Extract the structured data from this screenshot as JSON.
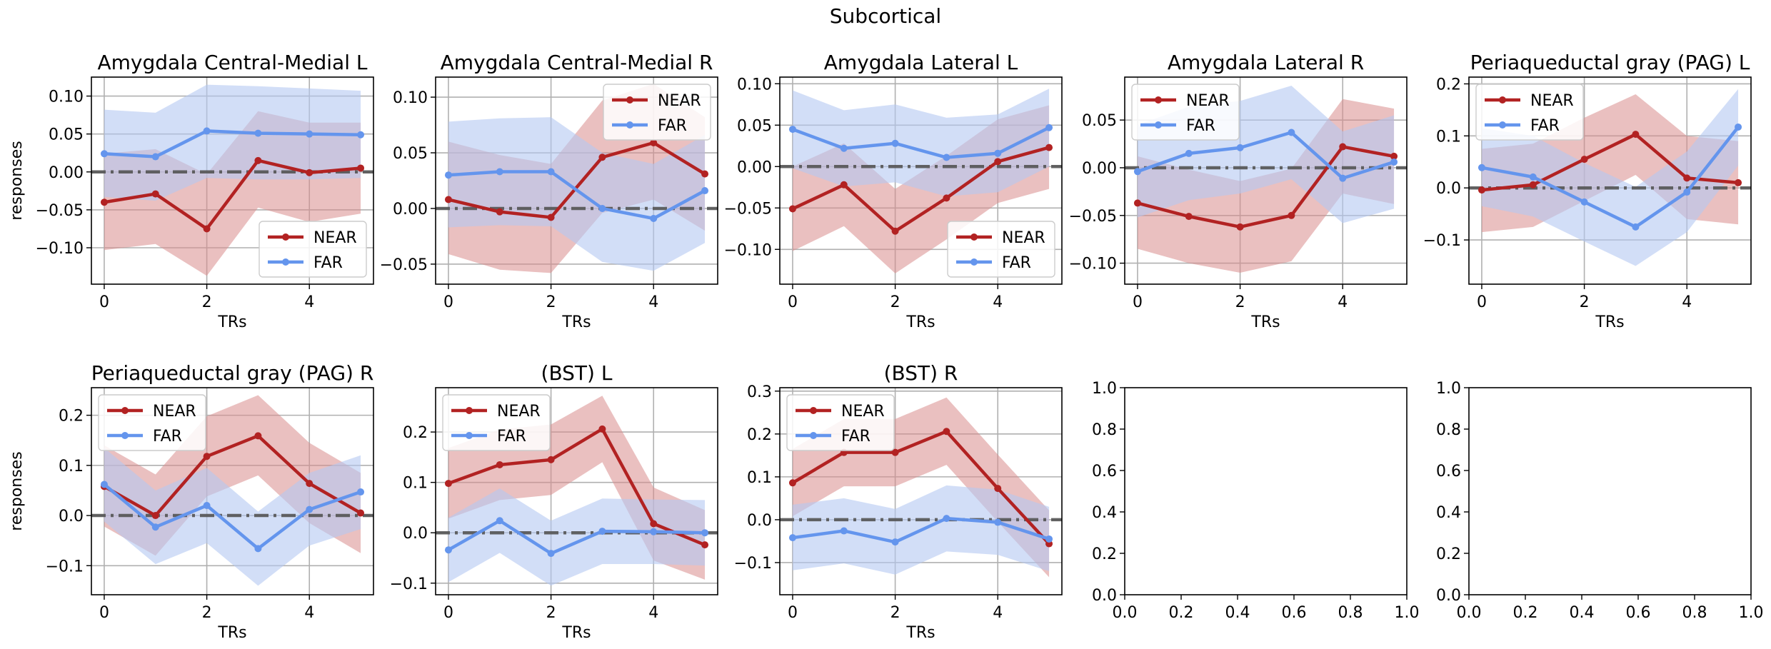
{
  "figure": {
    "suptitle": "Subcortical"
  },
  "style": {
    "near_color": "#b22222",
    "far_color": "#6495ed",
    "near_fill": "#d98c8c",
    "far_fill": "#b4c8f2",
    "zero_line_color": "#555555",
    "grid_color": "#b0b0b0"
  },
  "chart_data": [
    {
      "type": "line",
      "title": "Amygdala Central-Medial L",
      "xlabel": "TRs",
      "ylabel": "responses",
      "x": [
        0,
        1,
        2,
        3,
        4,
        5
      ],
      "xlim": [
        -0.25,
        5.25
      ],
      "ylim": [
        -0.148,
        0.125
      ],
      "yticks": [
        -0.1,
        -0.05,
        0.0,
        0.05,
        0.1
      ],
      "ytick_labels": [
        "−0.10",
        "−0.05",
        "0.00",
        "0.05",
        "0.10"
      ],
      "xticks": [
        0,
        2,
        4
      ],
      "xtick_labels": [
        "0",
        "2",
        "4"
      ],
      "legend": "lower-right",
      "grid": true,
      "zero_line": true,
      "series": [
        {
          "name": "NEAR",
          "values": [
            -0.04,
            -0.029,
            -0.075,
            0.015,
            -0.001,
            0.005
          ],
          "upper": [
            0.024,
            0.03,
            -0.003,
            0.08,
            0.065,
            0.065
          ],
          "lower": [
            -0.103,
            -0.095,
            -0.137,
            -0.047,
            -0.066,
            -0.055
          ]
        },
        {
          "name": "FAR",
          "values": [
            0.024,
            0.02,
            0.054,
            0.051,
            0.05,
            0.049
          ],
          "upper": [
            0.082,
            0.078,
            0.115,
            0.113,
            0.11,
            0.107
          ],
          "lower": [
            -0.033,
            -0.038,
            -0.008,
            -0.01,
            -0.01,
            -0.008
          ]
        }
      ]
    },
    {
      "type": "line",
      "title": "Amygdala Central-Medial R",
      "xlabel": "TRs",
      "ylabel": "",
      "x": [
        0,
        1,
        2,
        3,
        4,
        5
      ],
      "xlim": [
        -0.25,
        5.25
      ],
      "ylim": [
        -0.068,
        0.118
      ],
      "yticks": [
        -0.05,
        0.0,
        0.05,
        0.1
      ],
      "ytick_labels": [
        "−0.05",
        "0.00",
        "0.05",
        "0.10"
      ],
      "xticks": [
        0,
        2,
        4
      ],
      "xtick_labels": [
        "0",
        "2",
        "4"
      ],
      "legend": "upper-right",
      "grid": true,
      "zero_line": true,
      "series": [
        {
          "name": "NEAR",
          "values": [
            0.008,
            -0.003,
            -0.008,
            0.046,
            0.059,
            0.031
          ],
          "upper": [
            0.06,
            0.048,
            0.04,
            0.097,
            0.112,
            0.082
          ],
          "lower": [
            -0.041,
            -0.055,
            -0.058,
            -0.004,
            0.008,
            -0.02
          ]
        },
        {
          "name": "FAR",
          "values": [
            0.03,
            0.033,
            0.033,
            0.0,
            -0.009,
            0.016
          ],
          "upper": [
            0.078,
            0.081,
            0.082,
            0.05,
            0.04,
            0.066
          ],
          "lower": [
            -0.017,
            -0.015,
            -0.016,
            -0.048,
            -0.056,
            -0.031
          ]
        }
      ]
    },
    {
      "type": "line",
      "title": "Amygdala Lateral L",
      "xlabel": "TRs",
      "ylabel": "",
      "x": [
        0,
        1,
        2,
        3,
        4,
        5
      ],
      "xlim": [
        -0.25,
        5.25
      ],
      "ylim": [
        -0.142,
        0.108
      ],
      "yticks": [
        -0.1,
        -0.05,
        0.0,
        0.05,
        0.1
      ],
      "ytick_labels": [
        "−0.10",
        "−0.05",
        "0.00",
        "0.05",
        "0.10"
      ],
      "xticks": [
        0,
        2,
        4
      ],
      "xtick_labels": [
        "0",
        "2",
        "4"
      ],
      "legend": "lower-right",
      "grid": true,
      "zero_line": true,
      "series": [
        {
          "name": "NEAR",
          "values": [
            -0.051,
            -0.022,
            -0.078,
            -0.038,
            0.006,
            0.023
          ],
          "upper": [
            0.0,
            0.028,
            -0.027,
            0.013,
            0.057,
            0.074
          ],
          "lower": [
            -0.102,
            -0.072,
            -0.129,
            -0.088,
            -0.044,
            -0.027
          ]
        },
        {
          "name": "FAR",
          "values": [
            0.045,
            0.022,
            0.028,
            0.011,
            0.016,
            0.047
          ],
          "upper": [
            0.092,
            0.068,
            0.075,
            0.059,
            0.063,
            0.094
          ],
          "lower": [
            -0.002,
            -0.024,
            -0.019,
            -0.036,
            -0.031,
            0.0
          ]
        }
      ]
    },
    {
      "type": "line",
      "title": "Amygdala Lateral R",
      "xlabel": "TRs",
      "ylabel": "",
      "x": [
        0,
        1,
        2,
        3,
        4,
        5
      ],
      "xlim": [
        -0.25,
        5.25
      ],
      "ylim": [
        -0.122,
        0.095
      ],
      "yticks": [
        -0.1,
        -0.05,
        0.0,
        0.05
      ],
      "ytick_labels": [
        "−0.10",
        "−0.05",
        "0.00",
        "0.05"
      ],
      "xticks": [
        0,
        2,
        4
      ],
      "xtick_labels": [
        "0",
        "2",
        "4"
      ],
      "legend": "upper-left",
      "grid": true,
      "zero_line": true,
      "series": [
        {
          "name": "NEAR",
          "values": [
            -0.037,
            -0.051,
            -0.062,
            -0.05,
            0.022,
            0.012
          ],
          "upper": [
            0.012,
            -0.002,
            -0.014,
            -0.001,
            0.072,
            0.062
          ],
          "lower": [
            -0.085,
            -0.1,
            -0.11,
            -0.098,
            -0.027,
            -0.038
          ]
        },
        {
          "name": "FAR",
          "values": [
            -0.004,
            0.015,
            0.021,
            0.037,
            -0.011,
            0.006
          ],
          "upper": [
            0.045,
            0.064,
            0.07,
            0.086,
            0.038,
            0.055
          ],
          "lower": [
            -0.052,
            -0.034,
            -0.027,
            -0.012,
            -0.058,
            -0.043
          ]
        }
      ]
    },
    {
      "type": "line",
      "title": "Periaqueductal gray (PAG) L",
      "xlabel": "TRs",
      "ylabel": "",
      "x": [
        0,
        1,
        2,
        3,
        4,
        5
      ],
      "xlim": [
        -0.25,
        5.25
      ],
      "ylim": [
        -0.185,
        0.213
      ],
      "yticks": [
        -0.1,
        0.0,
        0.1,
        0.2
      ],
      "ytick_labels": [
        "−0.1",
        "0.0",
        "0.1",
        "0.2"
      ],
      "xticks": [
        0,
        2,
        4
      ],
      "xtick_labels": [
        "0",
        "2",
        "4"
      ],
      "legend": "upper-left",
      "grid": true,
      "zero_line": true,
      "series": [
        {
          "name": "NEAR",
          "values": [
            -0.004,
            0.006,
            0.055,
            0.103,
            0.019,
            0.01
          ],
          "upper": [
            0.075,
            0.085,
            0.135,
            0.18,
            0.1,
            0.09
          ],
          "lower": [
            -0.085,
            -0.075,
            -0.025,
            0.025,
            -0.06,
            -0.07
          ]
        },
        {
          "name": "FAR",
          "values": [
            0.039,
            0.021,
            -0.027,
            -0.075,
            -0.008,
            0.117
          ],
          "upper": [
            0.115,
            0.1,
            0.048,
            0.002,
            0.07,
            0.19
          ],
          "lower": [
            -0.035,
            -0.055,
            -0.103,
            -0.15,
            -0.085,
            0.043
          ]
        }
      ]
    },
    {
      "type": "line",
      "title": "Periaqueductal gray (PAG) R",
      "xlabel": "TRs",
      "ylabel": "responses",
      "x": [
        0,
        1,
        2,
        3,
        4,
        5
      ],
      "xlim": [
        -0.25,
        5.25
      ],
      "ylim": [
        -0.158,
        0.255
      ],
      "yticks": [
        -0.1,
        0.0,
        0.1,
        0.2
      ],
      "ytick_labels": [
        "−0.1",
        "0.0",
        "0.1",
        "0.2"
      ],
      "xticks": [
        0,
        2,
        4
      ],
      "xtick_labels": [
        "0",
        "2",
        "4"
      ],
      "legend": "upper-left",
      "grid": true,
      "zero_line": true,
      "series": [
        {
          "name": "NEAR",
          "values": [
            0.058,
            0.0,
            0.118,
            0.159,
            0.064,
            0.005
          ],
          "upper": [
            0.14,
            0.082,
            0.198,
            0.24,
            0.145,
            0.085
          ],
          "lower": [
            -0.022,
            -0.08,
            0.038,
            0.08,
            -0.015,
            -0.075
          ]
        },
        {
          "name": "FAR",
          "values": [
            0.062,
            -0.023,
            0.02,
            -0.066,
            0.012,
            0.047
          ],
          "upper": [
            0.135,
            0.05,
            0.095,
            0.008,
            0.085,
            0.12
          ],
          "lower": [
            -0.012,
            -0.097,
            -0.055,
            -0.14,
            -0.06,
            -0.027
          ]
        }
      ]
    },
    {
      "type": "line",
      "title": "(BST) L",
      "xlabel": "TRs",
      "ylabel": "",
      "x": [
        0,
        1,
        2,
        3,
        4,
        5
      ],
      "xlim": [
        -0.25,
        5.25
      ],
      "ylim": [
        -0.123,
        0.288
      ],
      "yticks": [
        -0.1,
        0.0,
        0.1,
        0.2
      ],
      "ytick_labels": [
        "−0.1",
        "0.0",
        "0.1",
        "0.2"
      ],
      "xticks": [
        0,
        2,
        4
      ],
      "xtick_labels": [
        "0",
        "2",
        "4"
      ],
      "legend": "upper-left",
      "grid": true,
      "zero_line": true,
      "series": [
        {
          "name": "NEAR",
          "values": [
            0.098,
            0.135,
            0.145,
            0.206,
            0.018,
            -0.024
          ],
          "upper": [
            0.168,
            0.205,
            0.215,
            0.272,
            0.09,
            0.045
          ],
          "lower": [
            0.028,
            0.065,
            0.075,
            0.14,
            -0.055,
            -0.093
          ]
        },
        {
          "name": "FAR",
          "values": [
            -0.034,
            0.024,
            -0.041,
            0.003,
            0.002,
            0.0
          ],
          "upper": [
            0.03,
            0.088,
            0.024,
            0.068,
            0.066,
            0.065
          ],
          "lower": [
            -0.098,
            -0.04,
            -0.105,
            -0.062,
            -0.062,
            -0.065
          ]
        }
      ]
    },
    {
      "type": "line",
      "title": "(BST) R",
      "xlabel": "TRs",
      "ylabel": "",
      "x": [
        0,
        1,
        2,
        3,
        4,
        5
      ],
      "xlim": [
        -0.25,
        5.25
      ],
      "ylim": [
        -0.175,
        0.308
      ],
      "yticks": [
        -0.1,
        0.0,
        0.1,
        0.2,
        0.3
      ],
      "ytick_labels": [
        "−0.1",
        "0.0",
        "0.1",
        "0.2",
        "0.3"
      ],
      "xticks": [
        0,
        2,
        4
      ],
      "xtick_labels": [
        "0",
        "2",
        "4"
      ],
      "legend": "upper-left",
      "grid": true,
      "zero_line": true,
      "series": [
        {
          "name": "NEAR",
          "values": [
            0.086,
            0.157,
            0.157,
            0.206,
            0.073,
            -0.056
          ],
          "upper": [
            0.165,
            0.235,
            0.235,
            0.285,
            0.152,
            0.022
          ],
          "lower": [
            0.008,
            0.078,
            0.078,
            0.128,
            -0.005,
            -0.134
          ]
        },
        {
          "name": "FAR",
          "values": [
            -0.042,
            -0.026,
            -0.052,
            0.003,
            -0.006,
            -0.045
          ],
          "upper": [
            0.035,
            0.05,
            0.025,
            0.08,
            0.07,
            0.03
          ],
          "lower": [
            -0.118,
            -0.102,
            -0.128,
            -0.074,
            -0.082,
            -0.12
          ]
        }
      ]
    },
    {
      "type": "line",
      "title": "",
      "xlabel": "",
      "ylabel": "",
      "x": [],
      "xlim": [
        0,
        1
      ],
      "ylim": [
        0,
        1
      ],
      "yticks": [
        0.0,
        0.2,
        0.4,
        0.6,
        0.8,
        1.0
      ],
      "ytick_labels": [
        "0.0",
        "0.2",
        "0.4",
        "0.6",
        "0.8",
        "1.0"
      ],
      "xticks": [
        0.0,
        0.2,
        0.4,
        0.6,
        0.8,
        1.0
      ],
      "xtick_labels": [
        "0.0",
        "0.2",
        "0.4",
        "0.6",
        "0.8",
        "1.0"
      ],
      "legend": "none",
      "grid": false,
      "zero_line": false,
      "series": []
    },
    {
      "type": "line",
      "title": "",
      "xlabel": "",
      "ylabel": "",
      "x": [],
      "xlim": [
        0,
        1
      ],
      "ylim": [
        0,
        1
      ],
      "yticks": [
        0.0,
        0.2,
        0.4,
        0.6,
        0.8,
        1.0
      ],
      "ytick_labels": [
        "0.0",
        "0.2",
        "0.4",
        "0.6",
        "0.8",
        "1.0"
      ],
      "xticks": [
        0.0,
        0.2,
        0.4,
        0.6,
        0.8,
        1.0
      ],
      "xtick_labels": [
        "0.0",
        "0.2",
        "0.4",
        "0.6",
        "0.8",
        "1.0"
      ],
      "legend": "none",
      "grid": false,
      "zero_line": false,
      "series": []
    }
  ]
}
